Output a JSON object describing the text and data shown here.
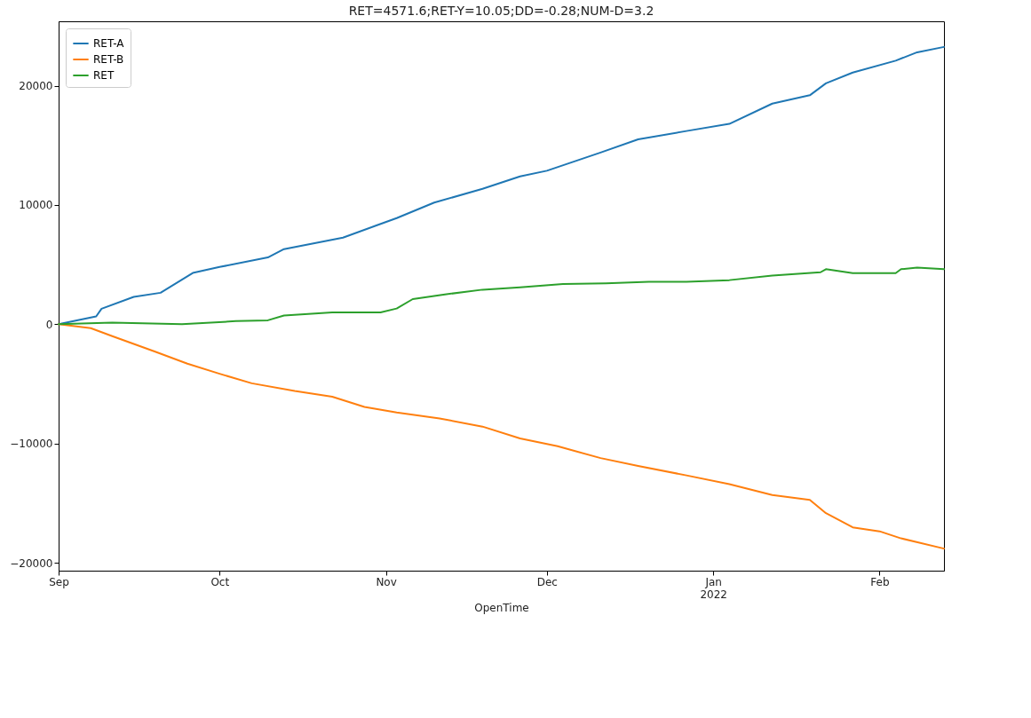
{
  "chart_data": {
    "type": "line",
    "title": "RET=4571.6;RET-Y=10.05;DD=-0.28;NUM-D=3.2",
    "xlabel": "OpenTime",
    "legend": "top left",
    "grid": false,
    "line_style": "solid",
    "xlim": [
      "2021-09-01",
      "2022-02-13"
    ],
    "xticks": [
      {
        "value": "2021-09-01",
        "label": "Sep"
      },
      {
        "value": "2021-10-01",
        "label": "Oct"
      },
      {
        "value": "2021-11-01",
        "label": "Nov"
      },
      {
        "value": "2021-12-01",
        "label": "Dec"
      },
      {
        "value": "2022-01-01",
        "label": "Jan\n2022"
      },
      {
        "value": "2022-02-01",
        "label": "Feb"
      }
    ],
    "ylim": [
      -20660,
      25400
    ],
    "yticks": [
      -20000,
      -10000,
      0,
      10000,
      20000
    ],
    "series": [
      {
        "name": "RET-A",
        "color": "#1f77b4",
        "x": [
          "2021-09-01",
          "2021-09-08",
          "2021-09-09",
          "2021-09-15",
          "2021-09-20",
          "2021-09-26",
          "2021-10-01",
          "2021-10-10",
          "2021-10-13",
          "2021-10-24",
          "2021-10-30",
          "2021-11-03",
          "2021-11-10",
          "2021-11-19",
          "2021-11-26",
          "2021-12-01",
          "2021-12-11",
          "2021-12-18",
          "2021-12-27",
          "2022-01-04",
          "2022-01-12",
          "2022-01-19",
          "2022-01-22",
          "2022-01-27",
          "2022-02-04",
          "2022-02-08",
          "2022-02-13"
        ],
        "values": [
          0,
          660,
          1300,
          2300,
          2640,
          4300,
          4800,
          5600,
          6300,
          7260,
          8250,
          8900,
          10200,
          11350,
          12400,
          12870,
          14400,
          15500,
          16200,
          16800,
          18500,
          19200,
          20200,
          21100,
          22100,
          22800,
          23250
        ]
      },
      {
        "name": "RET-B",
        "color": "#ff7f0e",
        "x": [
          "2021-09-01",
          "2021-09-07",
          "2021-09-11",
          "2021-09-19",
          "2021-09-25",
          "2021-10-01",
          "2021-10-07",
          "2021-10-15",
          "2021-10-22",
          "2021-10-28",
          "2021-11-03",
          "2021-11-11",
          "2021-11-19",
          "2021-11-26",
          "2021-12-03",
          "2021-12-11",
          "2021-12-18",
          "2021-12-27",
          "2022-01-04",
          "2022-01-12",
          "2022-01-19",
          "2022-01-22",
          "2022-01-27",
          "2022-02-01",
          "2022-02-05",
          "2022-02-13"
        ],
        "values": [
          0,
          -330,
          -1000,
          -2300,
          -3300,
          -4150,
          -4950,
          -5600,
          -6070,
          -6930,
          -7400,
          -7900,
          -8580,
          -9570,
          -10230,
          -11220,
          -11880,
          -12670,
          -13400,
          -14320,
          -14720,
          -15840,
          -17030,
          -17360,
          -17950,
          -18810
        ]
      },
      {
        "name": "RET",
        "color": "#2ca02c",
        "x": [
          "2021-09-01",
          "2021-09-11",
          "2021-09-24",
          "2021-10-04",
          "2021-10-10",
          "2021-10-13",
          "2021-10-22",
          "2021-10-31",
          "2021-11-03",
          "2021-11-06",
          "2021-11-12",
          "2021-11-19",
          "2021-11-26",
          "2021-12-04",
          "2021-12-12",
          "2021-12-20",
          "2021-12-27",
          "2022-01-04",
          "2022-01-12",
          "2022-01-21",
          "2022-01-22",
          "2022-01-27",
          "2022-02-04",
          "2022-02-05",
          "2022-02-08",
          "2022-02-13"
        ],
        "values": [
          0,
          130,
          0,
          260,
          330,
          730,
          990,
          990,
          1320,
          2110,
          2500,
          2900,
          3100,
          3370,
          3430,
          3560,
          3560,
          3700,
          4090,
          4360,
          4620,
          4290,
          4290,
          4620,
          4750,
          4620
        ]
      }
    ]
  }
}
